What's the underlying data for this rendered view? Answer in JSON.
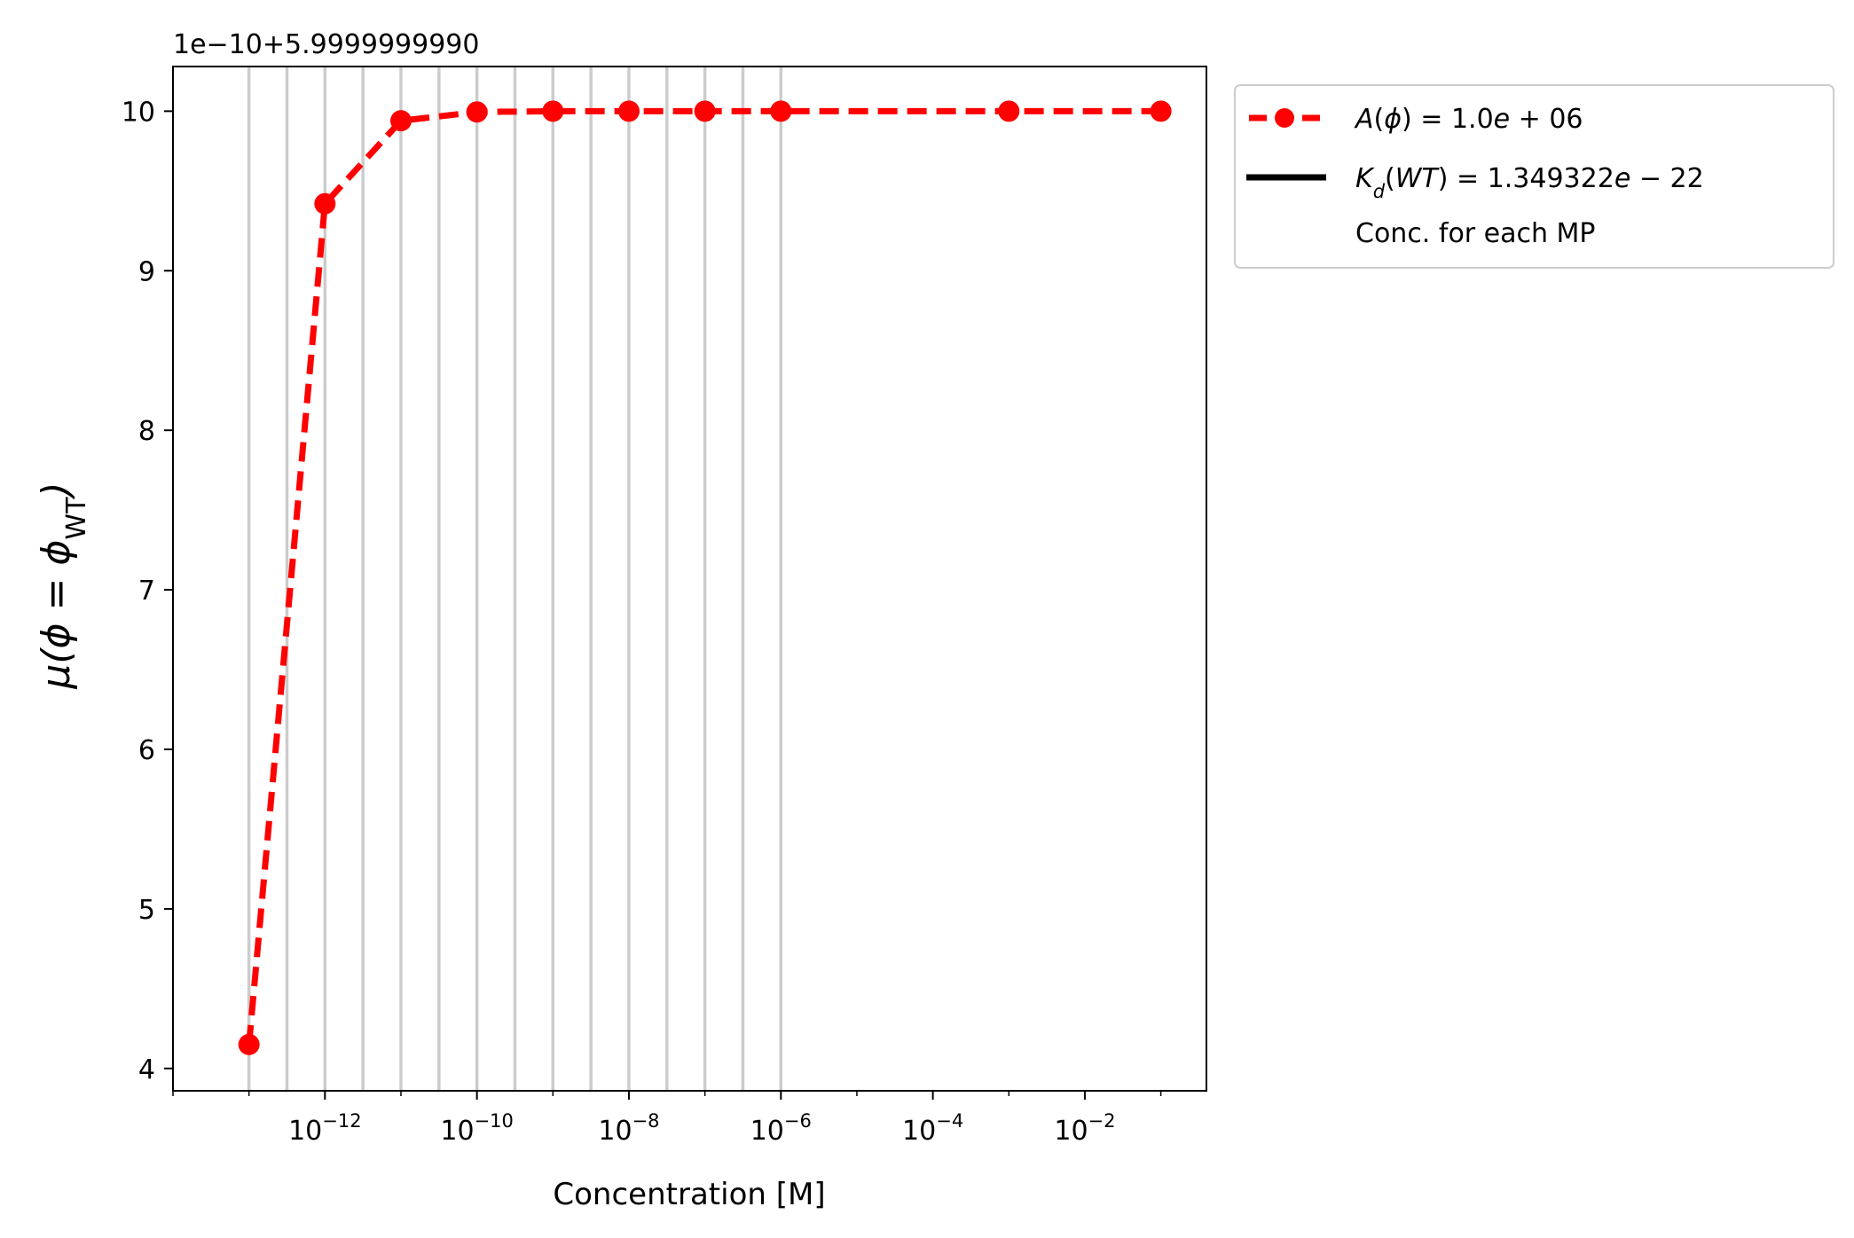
{
  "chart_data": {
    "type": "line",
    "title": "",
    "xlabel": "Concentration [M]",
    "ylabel": "μ(ϕ = ϕ_WT)",
    "y_offset_label": "1e−10+5.9999999990",
    "xscale": "log",
    "xlim_exp": [
      -14.0,
      -0.4
    ],
    "ylim": [
      3.86,
      10.28
    ],
    "x_ticks": [
      {
        "exp": -12,
        "base": "10",
        "sup": "−12"
      },
      {
        "exp": -10,
        "base": "10",
        "sup": "−10"
      },
      {
        "exp": -8,
        "base": "10",
        "sup": "−8"
      },
      {
        "exp": -6,
        "base": "10",
        "sup": "−6"
      },
      {
        "exp": -4,
        "base": "10",
        "sup": "−4"
      },
      {
        "exp": -2,
        "base": "10",
        "sup": "−2"
      }
    ],
    "y_ticks": [
      4,
      5,
      6,
      7,
      8,
      9,
      10
    ],
    "grid": false,
    "vlines_x_exp": [
      -13,
      -12.5,
      -12,
      -11.5,
      -11,
      -10.5,
      -10,
      -9.5,
      -9,
      -8.5,
      -8,
      -7.5,
      -7,
      -6.5,
      -6
    ],
    "series": [
      {
        "name": "A(ϕ) = 1.0e + 06",
        "color": "#ff0000",
        "style": "dashed",
        "marker": "circle",
        "x_exp": [
          -13,
          -12,
          -11,
          -10,
          -9,
          -8,
          -7,
          -6,
          -3,
          -1
        ],
        "y": [
          4.15,
          9.42,
          9.94,
          9.995,
          10.0,
          10.0,
          10.0,
          10.0,
          10.0,
          10.0
        ]
      }
    ],
    "legend": {
      "placement": "outside-upper-right",
      "entries": [
        {
          "label": "A(ϕ) = 1.0e + 06",
          "kind": "red-dashed-marker",
          "color": "#ff0000"
        },
        {
          "label": "K_d(WT) = 1.349322e − 22",
          "kind": "black-solid",
          "color": "#000000"
        },
        {
          "label": "Conc. for each MP",
          "kind": "gray-line",
          "color": "#cccccc"
        }
      ]
    },
    "colors": {
      "series": "#ff0000",
      "vline": "#cccccc",
      "axis": "#000000"
    }
  }
}
